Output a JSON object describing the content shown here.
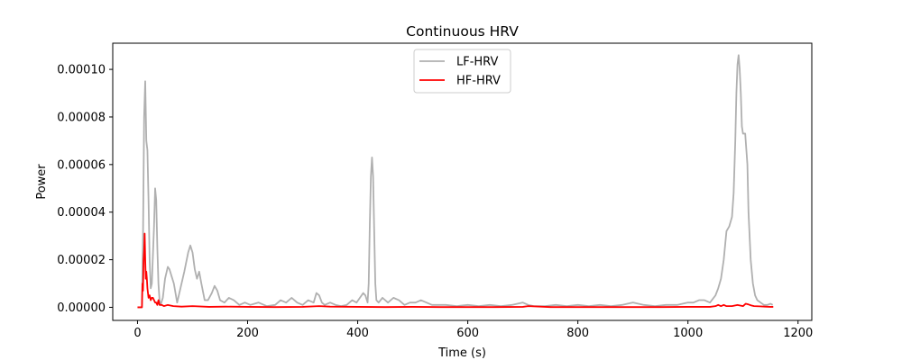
{
  "chart_data": {
    "type": "line",
    "title": "Continuous HRV",
    "xlabel": "Time (s)",
    "ylabel": "Power",
    "xlim": [
      -45,
      1225
    ],
    "ylim": [
      -5.5e-06,
      0.000111
    ],
    "xticks": [
      0,
      200,
      400,
      600,
      800,
      1000,
      1200
    ],
    "xtick_labels": [
      "0",
      "200",
      "400",
      "600",
      "800",
      "1000",
      "1200"
    ],
    "yticks": [
      0,
      2e-05,
      4e-05,
      6e-05,
      8e-05,
      0.0001
    ],
    "ytick_labels": [
      "0.00000",
      "0.00002",
      "0.00004",
      "0.00006",
      "0.00008",
      "0.00010"
    ],
    "grid": false,
    "legend": "upper center",
    "series": [
      {
        "name": "LF-HRV",
        "color": "#b0b0b0",
        "x": [
          0,
          8,
          10,
          12,
          14,
          16,
          18,
          20,
          22,
          24,
          26,
          30,
          32,
          34,
          36,
          38,
          40,
          42,
          46,
          50,
          55,
          58,
          62,
          66,
          72,
          78,
          85,
          92,
          96,
          100,
          104,
          108,
          112,
          116,
          122,
          128,
          135,
          140,
          145,
          150,
          158,
          166,
          175,
          185,
          195,
          205,
          220,
          235,
          250,
          260,
          270,
          280,
          290,
          300,
          310,
          320,
          325,
          330,
          335,
          340,
          350,
          360,
          370,
          380,
          390,
          398,
          404,
          410,
          414,
          418,
          420,
          422,
          424,
          426,
          428,
          430,
          432,
          434,
          438,
          445,
          455,
          465,
          475,
          485,
          495,
          505,
          515,
          525,
          535,
          545,
          560,
          580,
          600,
          620,
          640,
          660,
          680,
          700,
          710,
          720,
          740,
          760,
          780,
          800,
          820,
          840,
          860,
          880,
          900,
          920,
          940,
          960,
          980,
          1000,
          1010,
          1020,
          1030,
          1040,
          1050,
          1055,
          1060,
          1065,
          1070,
          1075,
          1080,
          1083,
          1086,
          1088,
          1090,
          1092,
          1094,
          1096,
          1098,
          1100,
          1104,
          1108,
          1110,
          1114,
          1118,
          1122,
          1126,
          1132,
          1138,
          1144,
          1150,
          1154
        ],
        "y": [
          0,
          0,
          3e-05,
          8e-05,
          9.5e-05,
          7e-05,
          6.6e-05,
          4.5e-05,
          2e-05,
          8e-06,
          1e-05,
          3.4e-05,
          5e-05,
          4.5e-05,
          2.5e-05,
          1e-05,
          3e-06,
          1e-06,
          4e-06,
          1.2e-05,
          1.7e-05,
          1.6e-05,
          1.3e-05,
          1e-05,
          2e-06,
          8e-06,
          1.5e-05,
          2.3e-05,
          2.6e-05,
          2.3e-05,
          1.6e-05,
          1.2e-05,
          1.5e-05,
          1e-05,
          3e-06,
          3e-06,
          6e-06,
          9e-06,
          7e-06,
          3e-06,
          2e-06,
          4e-06,
          3e-06,
          1e-06,
          2e-06,
          1e-06,
          2e-06,
          5e-07,
          1e-06,
          3e-06,
          2e-06,
          4e-06,
          2e-06,
          1e-06,
          3e-06,
          2e-06,
          6e-06,
          5e-06,
          2e-06,
          1e-06,
          2e-06,
          1e-06,
          5e-07,
          1e-06,
          3e-06,
          2e-06,
          4e-06,
          6e-06,
          5e-06,
          2e-06,
          1e-05,
          3.5e-05,
          5.5e-05,
          6.3e-05,
          5.5e-05,
          3.2e-05,
          1e-05,
          3e-06,
          2e-06,
          4e-06,
          2e-06,
          4e-06,
          3e-06,
          1e-06,
          2e-06,
          2e-06,
          3e-06,
          2e-06,
          1e-06,
          1e-06,
          1e-06,
          5e-07,
          1e-06,
          5e-07,
          1e-06,
          5e-07,
          1e-06,
          2e-06,
          1e-06,
          5e-07,
          5e-07,
          1e-06,
          5e-07,
          1e-06,
          5e-07,
          1e-06,
          5e-07,
          1e-06,
          2e-06,
          1e-06,
          5e-07,
          1e-06,
          1e-06,
          2e-06,
          2e-06,
          3e-06,
          3e-06,
          2e-06,
          5e-06,
          8e-06,
          1.2e-05,
          2e-05,
          3.2e-05,
          3.4e-05,
          3.8e-05,
          4.8e-05,
          7e-05,
          9e-05,
          0.000102,
          0.000106,
          0.0001,
          9e-05,
          7.6e-05,
          7.3e-05,
          7.3e-05,
          6e-05,
          4e-05,
          2e-05,
          1e-05,
          5e-06,
          3e-06,
          2e-06,
          1e-06,
          1e-06,
          1.5e-06,
          1e-06
        ]
      },
      {
        "name": "HF-HRV",
        "color": "#ff0000",
        "x": [
          0,
          8,
          9,
          10,
          11,
          12,
          13,
          14,
          15,
          16,
          17,
          18,
          19,
          20,
          22,
          24,
          26,
          28,
          30,
          32,
          34,
          36,
          38,
          40,
          44,
          48,
          55,
          65,
          80,
          100,
          130,
          160,
          200,
          250,
          300,
          330,
          350,
          400,
          450,
          500,
          550,
          600,
          650,
          700,
          710,
          750,
          800,
          850,
          900,
          950,
          1000,
          1020,
          1040,
          1050,
          1055,
          1060,
          1065,
          1070,
          1080,
          1090,
          1100,
          1105,
          1110,
          1115,
          1120,
          1130,
          1140,
          1150,
          1155
        ],
        "y": [
          0,
          0,
          1e-05,
          7e-06,
          2e-05,
          2.4e-05,
          3.1e-05,
          2e-05,
          1.2e-05,
          1.5e-05,
          1.2e-05,
          8e-06,
          6e-06,
          4e-06,
          5e-06,
          3e-06,
          4e-06,
          4e-06,
          3e-06,
          2e-06,
          2e-06,
          1e-06,
          3e-06,
          1e-06,
          1e-06,
          5e-07,
          1e-06,
          5e-07,
          3e-07,
          5e-07,
          2e-07,
          3e-07,
          2e-07,
          1e-07,
          2e-07,
          5e-07,
          3e-07,
          2e-07,
          1e-07,
          2e-07,
          1e-07,
          1e-07,
          1e-07,
          2e-07,
          5e-07,
          1e-07,
          1e-07,
          1e-07,
          1e-07,
          1e-07,
          2e-07,
          2e-07,
          2e-07,
          5e-07,
          1e-06,
          5e-07,
          1e-06,
          5e-07,
          5e-07,
          1e-06,
          5e-07,
          1.5e-06,
          1.2e-06,
          8e-07,
          5e-07,
          4e-07,
          3e-07,
          2e-07,
          2e-07
        ]
      }
    ]
  }
}
